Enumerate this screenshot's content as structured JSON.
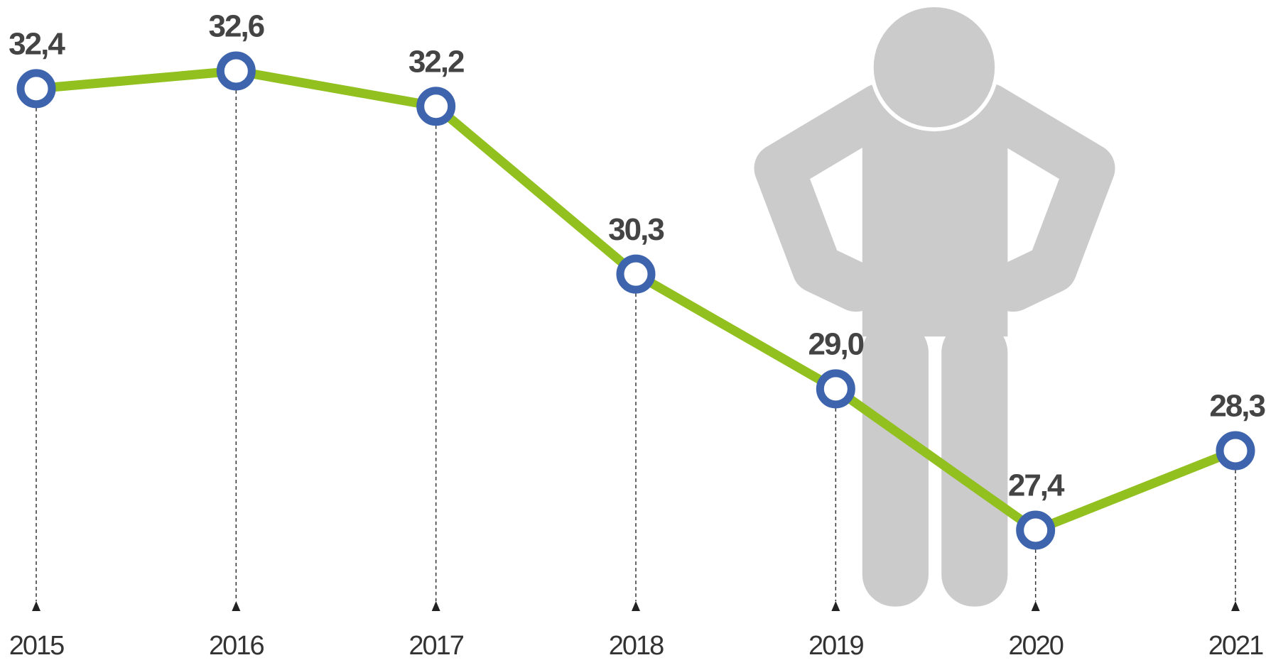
{
  "chart_data": {
    "type": "line",
    "categories": [
      "2015",
      "2016",
      "2017",
      "2018",
      "2019",
      "2020",
      "2021"
    ],
    "values": [
      32.4,
      32.6,
      32.2,
      30.3,
      29.0,
      27.4,
      28.3
    ],
    "value_labels": [
      "32,4",
      "32,6",
      "32,2",
      "30,3",
      "29,0",
      "27,4",
      "28,3"
    ],
    "color": "#92c01f",
    "marker_color": "#3e64ad"
  }
}
